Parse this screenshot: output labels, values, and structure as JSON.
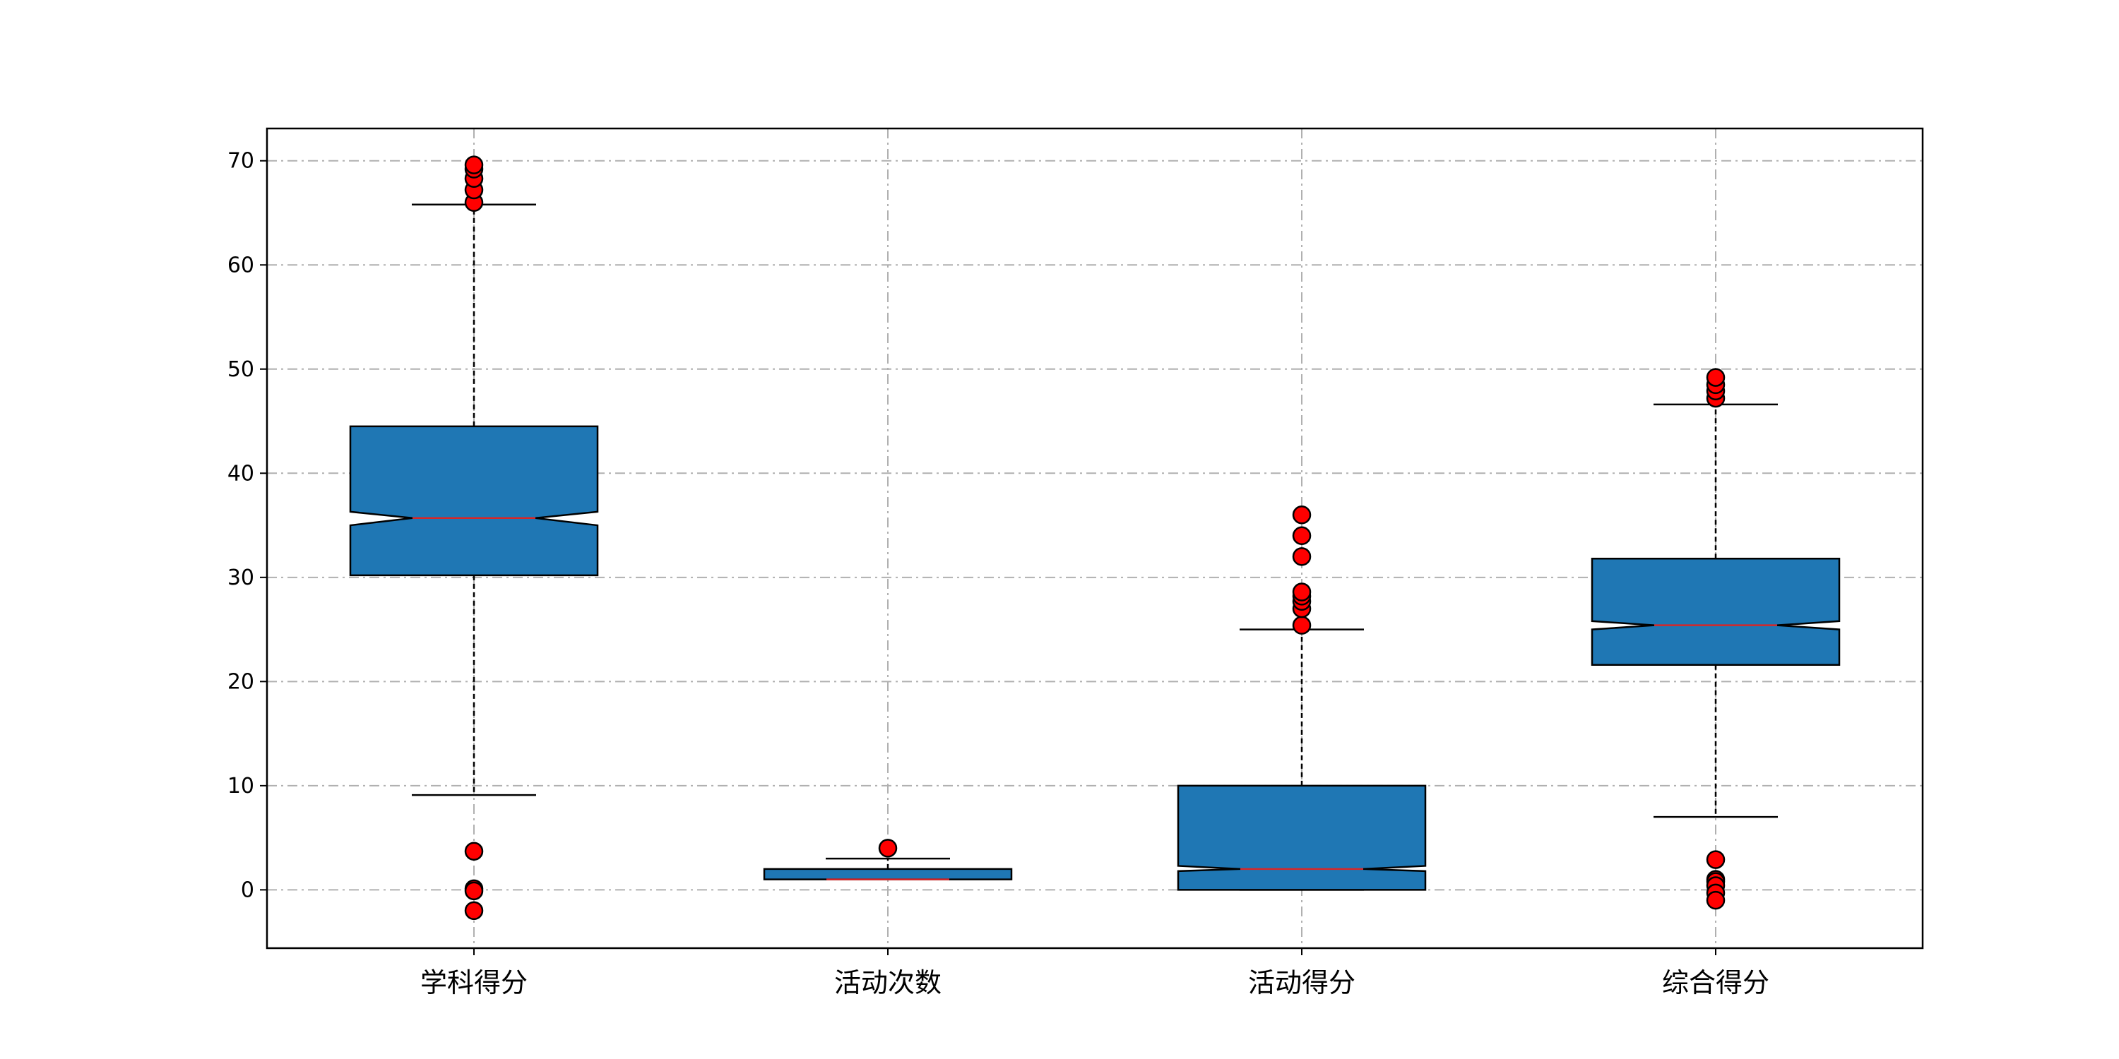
{
  "chart_data": {
    "type": "boxplot",
    "notched": true,
    "categories": [
      "学科得分",
      "活动次数",
      "活动得分",
      "综合得分"
    ],
    "ylim": [
      -5.6,
      73.1
    ],
    "yticks": [
      0,
      10,
      20,
      30,
      40,
      50,
      60,
      70
    ],
    "grid": true,
    "colors": {
      "box_fill": "#1f77b4",
      "box_edge": "#000000",
      "median": "#d62728",
      "flier_fill": "#ff0000",
      "flier_edge": "#000000",
      "grid": "#b0b0b0"
    },
    "boxes": [
      {
        "name": "学科得分",
        "whisker_low": 9.1,
        "q1": 30.2,
        "median": 35.7,
        "q3": 44.5,
        "whisker_high": 65.8,
        "notch_low": 35.0,
        "notch_high": 36.3,
        "outliers": [
          3.7,
          0.1,
          -0.1,
          -2.0,
          66.0,
          67.2,
          68.3,
          69.2,
          69.6
        ]
      },
      {
        "name": "活动次数",
        "whisker_low": 1.0,
        "q1": 1.0,
        "median": 1.0,
        "q3": 2.0,
        "whisker_high": 3.0,
        "notch_low": 1.0,
        "notch_high": 1.0,
        "outliers": [
          4.0
        ]
      },
      {
        "name": "活动得分",
        "whisker_low": 0.0,
        "q1": 0.0,
        "median": 2.0,
        "q3": 10.0,
        "whisker_high": 25.0,
        "notch_low": 1.8,
        "notch_high": 2.3,
        "outliers": [
          25.4,
          27.0,
          27.7,
          28.2,
          28.6,
          32.0,
          34.0,
          36.0
        ]
      },
      {
        "name": "综合得分",
        "whisker_low": 7.0,
        "q1": 21.6,
        "median": 25.4,
        "q3": 31.8,
        "whisker_high": 46.6,
        "notch_low": 25.0,
        "notch_high": 25.8,
        "outliers": [
          2.9,
          1.0,
          0.8,
          0.4,
          -0.3,
          -1.0,
          47.2,
          47.9,
          48.5,
          49.2
        ]
      }
    ]
  }
}
